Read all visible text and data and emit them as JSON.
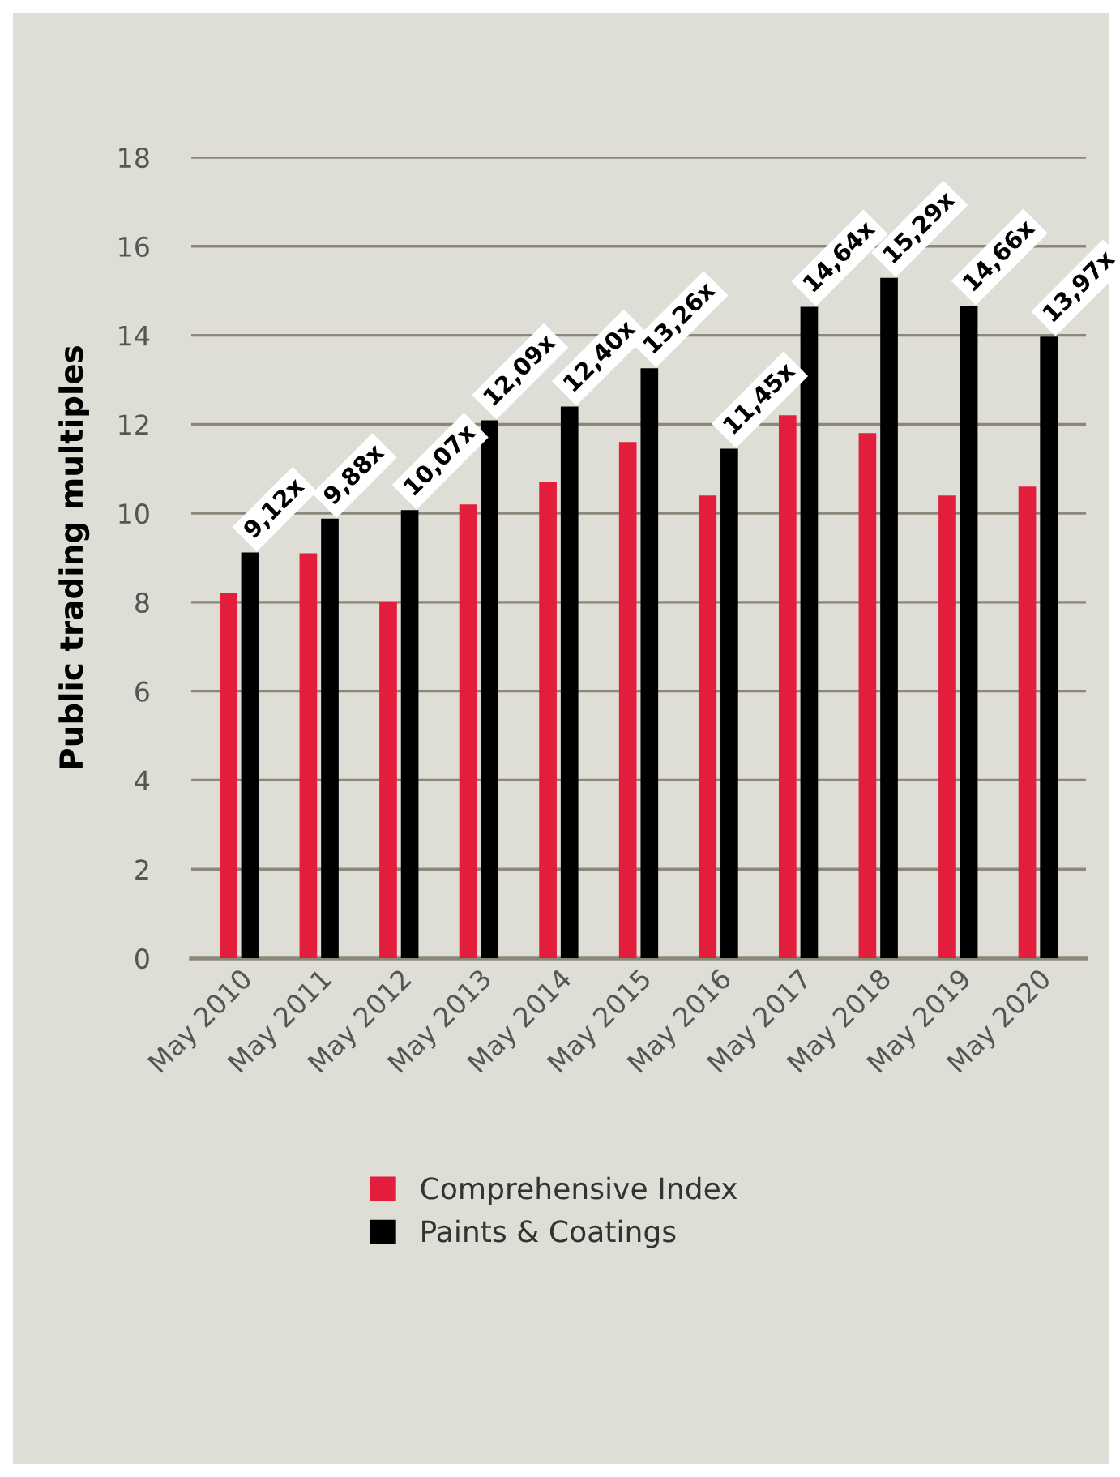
{
  "chart_data": {
    "type": "bar",
    "ylabel": "Public trading multiples",
    "categories": [
      "May 2010",
      "May 2011",
      "May 2012",
      "May 2013",
      "May 2014",
      "May 2015",
      "May 2016",
      "May 2017",
      "May 2018",
      "May 2019",
      "May 2020"
    ],
    "series": [
      {
        "name": "Comprehensive Index",
        "color": "#e31e3c",
        "values": [
          8.2,
          9.1,
          8.0,
          10.2,
          10.7,
          11.6,
          10.4,
          12.2,
          11.8,
          10.4,
          10.6
        ]
      },
      {
        "name": "Paints & Coatings",
        "color": "#000000",
        "values": [
          9.12,
          9.88,
          10.07,
          12.09,
          12.4,
          13.26,
          11.45,
          14.64,
          15.29,
          14.66,
          13.97
        ],
        "value_labels": [
          "9,12x",
          "9,88x",
          "10,07x",
          "12,09x",
          "12,40x",
          "13,26x",
          "11,45x",
          "14,64x",
          "15,29x",
          "14,66x",
          "13,97x"
        ]
      }
    ],
    "ylim": [
      0,
      18
    ],
    "yticks": [
      0,
      2,
      4,
      6,
      8,
      10,
      12,
      14,
      16,
      18
    ],
    "grid": "y",
    "legend": "bottom"
  }
}
